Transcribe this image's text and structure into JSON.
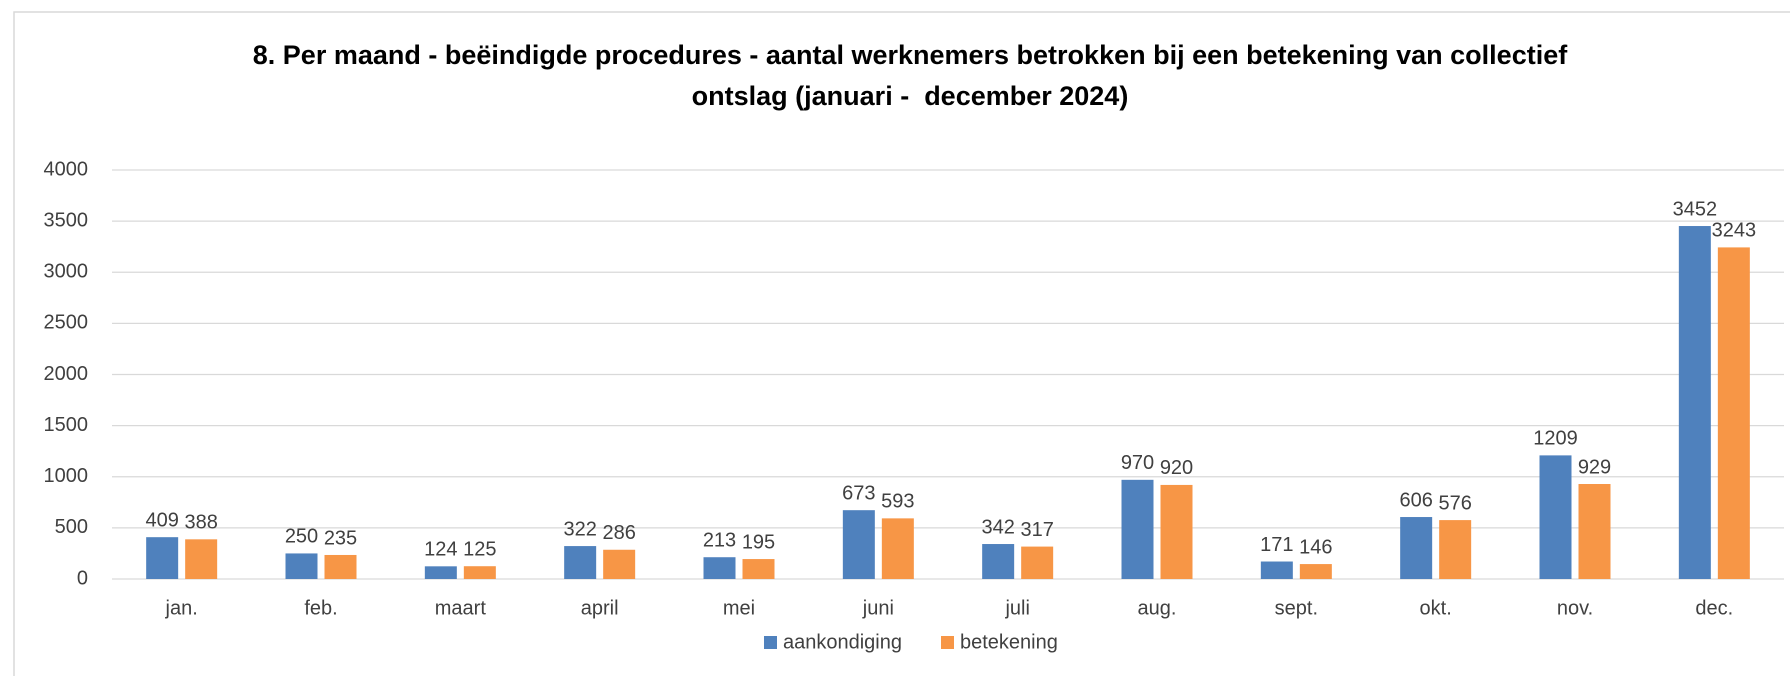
{
  "chart_data": {
    "type": "bar",
    "title": [
      "8. Per maand - beëindigde procedures - aantal werknemers betrokken bij een betekening van collectief",
      "ontslag (januari -  december 2024)"
    ],
    "categories": [
      "jan.",
      "feb.",
      "maart",
      "april",
      "mei",
      "juni",
      "juli",
      "aug.",
      "sept.",
      "okt.",
      "nov.",
      "dec."
    ],
    "series": [
      {
        "name": "aankondiging",
        "color": "#4f81bd",
        "values": [
          409,
          250,
          124,
          322,
          213,
          673,
          342,
          970,
          171,
          606,
          1209,
          3452
        ]
      },
      {
        "name": "betekening",
        "color": "#f79646",
        "values": [
          388,
          235,
          125,
          286,
          195,
          593,
          317,
          920,
          146,
          576,
          929,
          3243
        ]
      }
    ],
    "ylim": [
      0,
      4000
    ],
    "yticks": [
      0,
      500,
      1000,
      1500,
      2000,
      2500,
      3000,
      3500,
      4000
    ],
    "grid": true,
    "legend": "bottom"
  }
}
